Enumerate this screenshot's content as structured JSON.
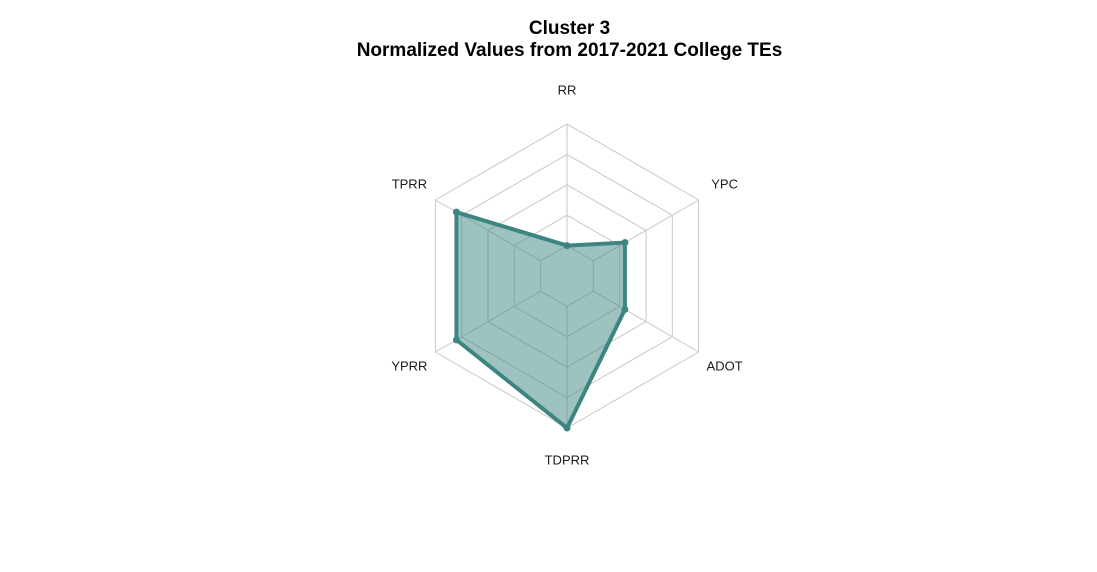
{
  "chart_data": {
    "type": "radar",
    "title": "Cluster 3",
    "subtitle": "Normalized Values from 2017-2021 College TEs",
    "axes": [
      "RR",
      "YPC",
      "ADOT",
      "TDPRR",
      "YPRR",
      "TPRR"
    ],
    "range": [
      0,
      1
    ],
    "grid_levels": 5,
    "grid": true,
    "series": [
      {
        "values": [
          0.0,
          0.3,
          0.3,
          1.0,
          0.8,
          0.8
        ]
      }
    ],
    "colors": {
      "line": "#3d8581",
      "fill": "#3d8581",
      "grid": "#c8c8c8"
    }
  }
}
